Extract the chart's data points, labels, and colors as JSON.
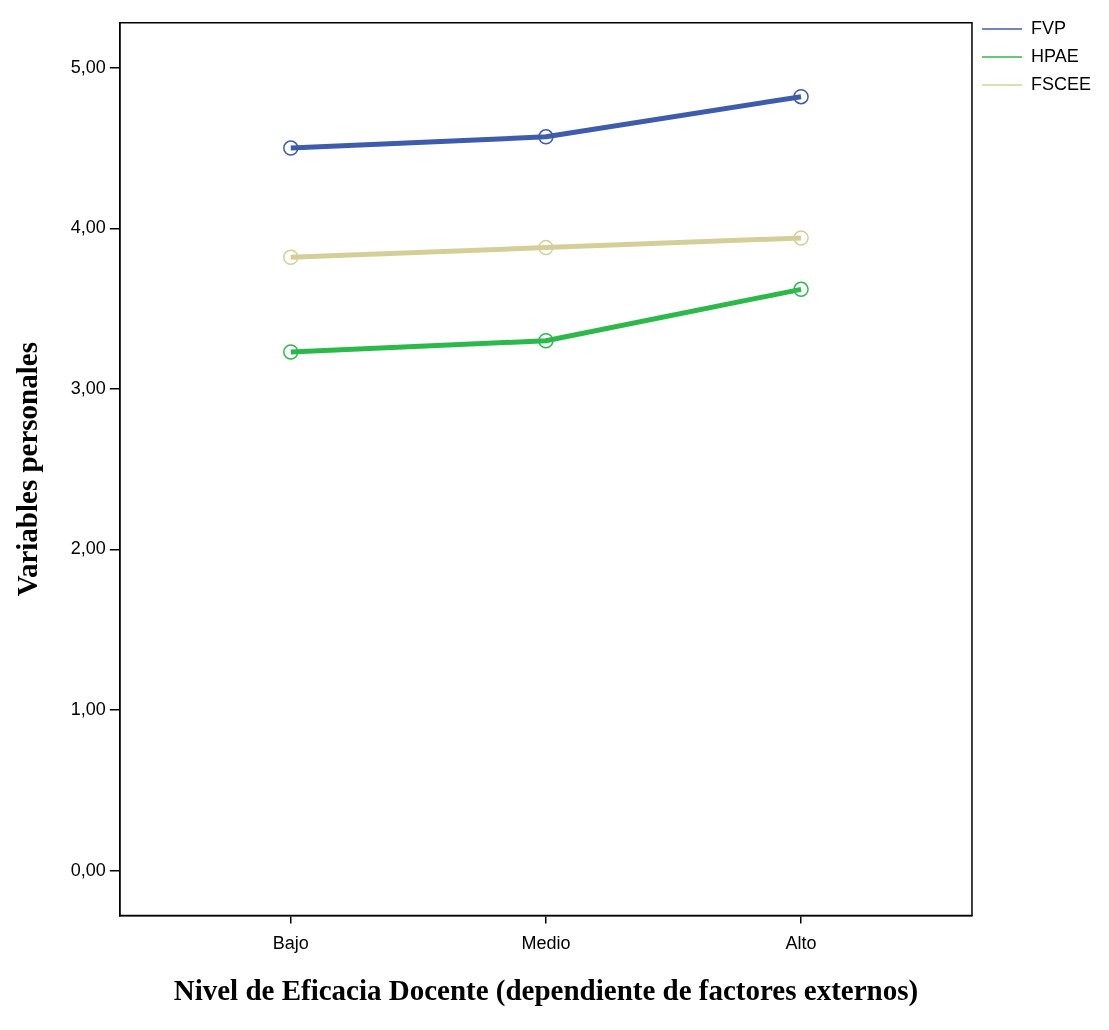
{
  "chart_data": {
    "type": "line",
    "xlabel": "Nivel de Eficacia Docente (dependiente de factores externos)",
    "ylabel": "Variables personales",
    "categories": [
      "Bajo",
      "Medio",
      "Alto"
    ],
    "series": [
      {
        "name": "FVP",
        "color": "#3f5bab",
        "values": [
          4.5,
          4.57,
          4.82
        ]
      },
      {
        "name": "HPAE",
        "color": "#2db84b",
        "values": [
          3.23,
          3.3,
          3.62
        ]
      },
      {
        "name": "FSCEE",
        "color": "#d4cf98",
        "values": [
          3.82,
          3.88,
          3.94
        ]
      }
    ],
    "ylim": [
      -0.28,
      5.28
    ],
    "yticks": [
      {
        "value": 0,
        "label": "0,00"
      },
      {
        "value": 1,
        "label": "1,00"
      },
      {
        "value": 2,
        "label": "2,00"
      },
      {
        "value": 3,
        "label": "3,00"
      },
      {
        "value": 4,
        "label": "4,00"
      },
      {
        "value": 5,
        "label": "5,00"
      }
    ],
    "grid": false,
    "legend": "top right",
    "marker": "circle",
    "line_style": "solid"
  }
}
